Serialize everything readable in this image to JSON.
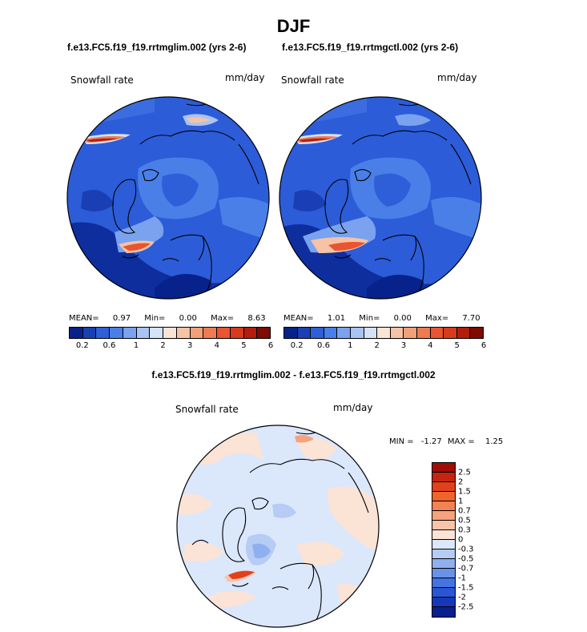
{
  "page": {
    "title": "DJF",
    "case_left": "f.e13.FC5.f19_f19.rrtmglim.002 (yrs 2-6)",
    "case_right": "f.e13.FC5.f19_f19.rrtmgctl.002 (yrs 2-6)",
    "diff_title": "f.e13.FC5.f19_f19.rrtmglim.002 - f.e13.FC5.f19_f19.rrtmgctl.002"
  },
  "panels": [
    {
      "variable": "Snowfall rate",
      "units": "mm/day",
      "mean_label": "MEAN=",
      "mean": "0.97",
      "min_label": "Min=",
      "min": "0.00",
      "max_label": "Max=",
      "max": "8.63"
    },
    {
      "variable": "Snowfall rate",
      "units": "mm/day",
      "mean_label": "MEAN=",
      "mean": "1.01",
      "min_label": "Min=",
      "min": "0.00",
      "max_label": "Max=",
      "max": "7.70"
    }
  ],
  "diff_panel": {
    "variable": "Snowfall rate",
    "units": "mm/day",
    "min_label": "MIN =",
    "min": "-1.27",
    "max_label": "MAX =",
    "max": "1.25"
  },
  "colorbar_main": {
    "labels": [
      "0.2",
      "0.6",
      "1",
      "2",
      "3",
      "4",
      "5",
      "6"
    ],
    "colors": [
      "#08228c",
      "#1a3fb5",
      "#2e5fd9",
      "#4a7fe8",
      "#7aa2ee",
      "#a9c4f2",
      "#d5e3f7",
      "#fbe3d6",
      "#f6c3a6",
      "#f2a07a",
      "#ee7b52",
      "#e85530",
      "#d83a1c",
      "#b41c0c",
      "#7e0a02"
    ]
  },
  "colorbar_diff": {
    "labels": [
      "2.5",
      "2",
      "1.5",
      "1",
      "0.7",
      "0.5",
      "0.3",
      "0",
      "-0.3",
      "-0.5",
      "-0.7",
      "-1",
      "-1.5",
      "-2",
      "-2.5"
    ],
    "colors": [
      "#a00d04",
      "#c52410",
      "#e0401c",
      "#f0632c",
      "#f48252",
      "#f6a27c",
      "#f9c4a8",
      "#fbe3d6",
      "#dbe7fb",
      "#b6ccf5",
      "#8fb0ee",
      "#6892e8",
      "#4473e2",
      "#2a55d4",
      "#1638b8",
      "#0a1f8c"
    ]
  }
}
